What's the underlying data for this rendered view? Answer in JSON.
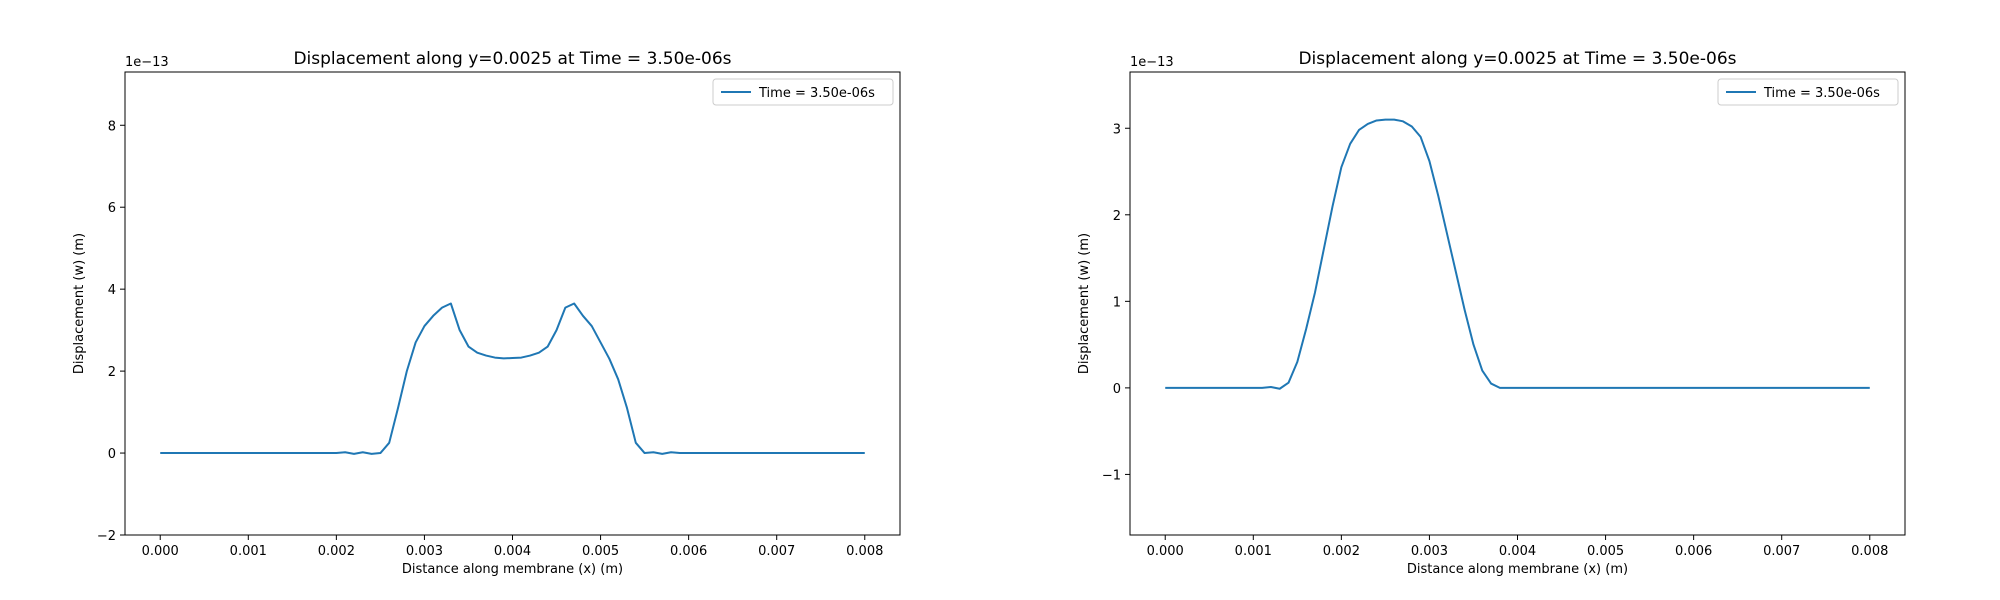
{
  "chart_data": [
    {
      "type": "line",
      "title": "Displacement along y=0.0025 at Time = 3.50e-06s",
      "xlabel": "Distance along membrane (x) (m)",
      "ylabel": "Displacement (w) (m)",
      "y_offset_label": "1e−13",
      "y_scale": 1e-13,
      "xlim": [
        -0.0004,
        0.0084
      ],
      "ylim": [
        -2.0,
        9.3
      ],
      "xticks": [
        0.0,
        0.001,
        0.002,
        0.003,
        0.004,
        0.005,
        0.006,
        0.007,
        0.008
      ],
      "xtick_labels": [
        "0.000",
        "0.001",
        "0.002",
        "0.003",
        "0.004",
        "0.005",
        "0.006",
        "0.007",
        "0.008"
      ],
      "yticks": [
        -2,
        0,
        2,
        4,
        6,
        8
      ],
      "ytick_labels": [
        "−2",
        "0",
        "2",
        "4",
        "6",
        "8"
      ],
      "grid": false,
      "legend_position": "upper right",
      "color": "#1f77b4",
      "series": [
        {
          "name": "Time = 3.50e-06s",
          "x": [
            0.0,
            0.001,
            0.002,
            0.0021,
            0.0022,
            0.0023,
            0.0024,
            0.0025,
            0.0026,
            0.0027,
            0.0028,
            0.0029,
            0.003,
            0.0031,
            0.0032,
            0.0033,
            0.0034,
            0.0035,
            0.0036,
            0.0037,
            0.0038,
            0.0039,
            0.004,
            0.0041,
            0.0042,
            0.0043,
            0.0044,
            0.0045,
            0.0046,
            0.0047,
            0.0048,
            0.0049,
            0.005,
            0.0051,
            0.0052,
            0.0053,
            0.0054,
            0.0055,
            0.0056,
            0.0057,
            0.0058,
            0.0059,
            0.006,
            0.007,
            0.008
          ],
          "y": [
            0.0,
            0.0,
            0.0,
            0.02,
            -0.02,
            0.02,
            -0.02,
            0.0,
            0.25,
            1.1,
            2.0,
            2.7,
            3.1,
            3.35,
            3.55,
            3.65,
            3.0,
            2.6,
            2.45,
            2.38,
            2.33,
            2.31,
            2.32,
            2.33,
            2.38,
            2.45,
            2.6,
            3.0,
            3.55,
            3.65,
            3.35,
            3.1,
            2.7,
            2.3,
            1.8,
            1.1,
            0.25,
            0.0,
            0.02,
            -0.02,
            0.02,
            0.0,
            0.0,
            0.0,
            0.0
          ]
        }
      ]
    },
    {
      "type": "line",
      "title": "Displacement along y=0.0025 at Time = 3.50e-06s",
      "xlabel": "Distance along membrane (x) (m)",
      "ylabel": "Displacement (w) (m)",
      "y_offset_label": "1e−13",
      "y_scale": 1e-13,
      "xlim": [
        -0.0004,
        0.0084
      ],
      "ylim": [
        -1.7,
        3.65
      ],
      "xticks": [
        0.0,
        0.001,
        0.002,
        0.003,
        0.004,
        0.005,
        0.006,
        0.007,
        0.008
      ],
      "xtick_labels": [
        "0.000",
        "0.001",
        "0.002",
        "0.003",
        "0.004",
        "0.005",
        "0.006",
        "0.007",
        "0.008"
      ],
      "yticks": [
        -1,
        0,
        1,
        2,
        3
      ],
      "ytick_labels": [
        "−1",
        "0",
        "1",
        "2",
        "3"
      ],
      "grid": false,
      "legend_position": "upper right",
      "color": "#1f77b4",
      "series": [
        {
          "name": "Time = 3.50e-06s",
          "x": [
            0.0,
            0.001,
            0.0011,
            0.0012,
            0.0013,
            0.0014,
            0.0015,
            0.0016,
            0.0017,
            0.0018,
            0.0019,
            0.002,
            0.0021,
            0.0022,
            0.0023,
            0.0024,
            0.0025,
            0.0026,
            0.0027,
            0.0028,
            0.0029,
            0.003,
            0.0031,
            0.0032,
            0.0033,
            0.0034,
            0.0035,
            0.0036,
            0.0037,
            0.0038,
            0.0039,
            0.004,
            0.0041,
            0.0042,
            0.005,
            0.006,
            0.007,
            0.008
          ],
          "y": [
            0.0,
            0.0,
            0.0,
            0.01,
            -0.01,
            0.06,
            0.3,
            0.68,
            1.1,
            1.6,
            2.1,
            2.55,
            2.82,
            2.98,
            3.05,
            3.09,
            3.1,
            3.1,
            3.08,
            3.02,
            2.9,
            2.62,
            2.22,
            1.78,
            1.34,
            0.9,
            0.5,
            0.2,
            0.05,
            0.0,
            0.0,
            0.0,
            0.0,
            0.0,
            0.0,
            0.0,
            0.0,
            0.0
          ]
        }
      ]
    }
  ]
}
